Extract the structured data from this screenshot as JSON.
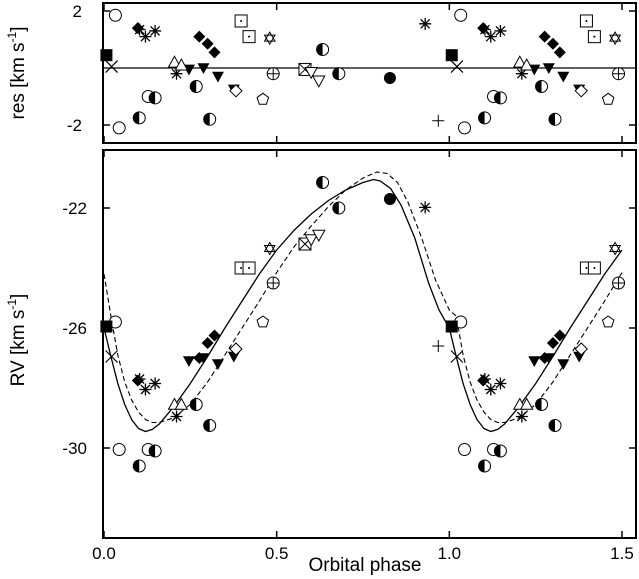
{
  "chart_data": [
    {
      "panel": "residuals",
      "type": "scatter",
      "ylabel": "res [km s",
      "ylabel_sup": "-1",
      "ylabel_close": "]",
      "xlim": [
        0.0,
        1.5
      ],
      "ylim": [
        -2.4,
        2.1
      ],
      "y_ticks": [
        2,
        -2
      ],
      "y_tick_labels": [
        "2",
        "-2"
      ],
      "x_ticks": [
        0.0,
        0.5,
        1.0,
        1.5
      ],
      "zero_line": 0,
      "points": [
        {
          "marker": "open-circle",
          "x": 0.033,
          "y": 1.85
        },
        {
          "marker": "open-circle",
          "x": 1.033,
          "y": 1.85
        },
        {
          "marker": "open-circle",
          "x": 0.044,
          "y": -2.1
        },
        {
          "marker": "open-circle",
          "x": 1.044,
          "y": -2.1
        },
        {
          "marker": "open-circle",
          "x": 0.128,
          "y": -1.0
        },
        {
          "marker": "open-circle",
          "x": 1.128,
          "y": -1.0
        },
        {
          "marker": "filled-square",
          "x": 0.007,
          "y": 0.45
        },
        {
          "marker": "filled-square",
          "x": 1.007,
          "y": 0.45
        },
        {
          "marker": "x-cross",
          "x": 0.022,
          "y": 0.05
        },
        {
          "marker": "x-cross",
          "x": 1.022,
          "y": 0.05
        },
        {
          "marker": "half-circle",
          "x": 0.102,
          "y": -1.75
        },
        {
          "marker": "half-circle",
          "x": 1.102,
          "y": -1.75
        },
        {
          "marker": "half-circle",
          "x": 0.148,
          "y": -1.05
        },
        {
          "marker": "half-circle",
          "x": 1.148,
          "y": -1.05
        },
        {
          "marker": "half-circle",
          "x": 0.267,
          "y": -0.65
        },
        {
          "marker": "half-circle",
          "x": 1.267,
          "y": -0.65
        },
        {
          "marker": "half-circle",
          "x": 0.306,
          "y": -1.8
        },
        {
          "marker": "half-circle",
          "x": 1.306,
          "y": -1.8
        },
        {
          "marker": "half-circle",
          "x": 0.633,
          "y": 0.65
        },
        {
          "marker": "half-circle",
          "x": 0.68,
          "y": -0.2
        },
        {
          "marker": "filled-circle",
          "x": 0.828,
          "y": -0.35
        },
        {
          "marker": "filled-diamond",
          "x": 0.098,
          "y": 1.4
        },
        {
          "marker": "filled-diamond",
          "x": 1.098,
          "y": 1.4
        },
        {
          "marker": "filled-diamond",
          "x": 0.276,
          "y": 1.1
        },
        {
          "marker": "filled-diamond",
          "x": 1.276,
          "y": 1.1
        },
        {
          "marker": "filled-diamond",
          "x": 0.3,
          "y": 0.85
        },
        {
          "marker": "filled-diamond",
          "x": 1.3,
          "y": 0.85
        },
        {
          "marker": "filled-diamond",
          "x": 0.32,
          "y": 0.55
        },
        {
          "marker": "filled-diamond",
          "x": 1.32,
          "y": 0.55
        },
        {
          "marker": "filled-tri-down",
          "x": 0.246,
          "y": -0.05
        },
        {
          "marker": "filled-tri-down",
          "x": 1.246,
          "y": -0.05
        },
        {
          "marker": "filled-tri-down",
          "x": 0.288,
          "y": 0.0
        },
        {
          "marker": "filled-tri-down",
          "x": 1.288,
          "y": 0.0
        },
        {
          "marker": "filled-tri-down",
          "x": 0.33,
          "y": -0.3
        },
        {
          "marker": "filled-tri-down",
          "x": 1.33,
          "y": -0.3
        },
        {
          "marker": "filled-tri-down",
          "x": 0.376,
          "y": -0.75
        },
        {
          "marker": "filled-tri-down",
          "x": 1.376,
          "y": -0.75
        },
        {
          "marker": "asterisk",
          "x": 0.103,
          "y": 1.35
        },
        {
          "marker": "asterisk",
          "x": 1.103,
          "y": 1.35
        },
        {
          "marker": "asterisk",
          "x": 0.12,
          "y": 1.1
        },
        {
          "marker": "asterisk",
          "x": 1.12,
          "y": 1.1
        },
        {
          "marker": "asterisk",
          "x": 0.148,
          "y": 1.3
        },
        {
          "marker": "asterisk",
          "x": 1.148,
          "y": 1.3
        },
        {
          "marker": "asterisk",
          "x": 0.21,
          "y": -0.2
        },
        {
          "marker": "asterisk",
          "x": 1.21,
          "y": -0.2
        },
        {
          "marker": "asterisk",
          "x": 0.93,
          "y": 1.55
        },
        {
          "marker": "open-tri-up",
          "x": 0.204,
          "y": 0.2
        },
        {
          "marker": "open-tri-up",
          "x": 1.204,
          "y": 0.2
        },
        {
          "marker": "open-tri-up",
          "x": 0.224,
          "y": 0.1
        },
        {
          "marker": "open-tri-up",
          "x": 1.224,
          "y": 0.1
        },
        {
          "marker": "open-diamond",
          "x": 0.382,
          "y": -0.8
        },
        {
          "marker": "open-diamond",
          "x": 1.382,
          "y": -0.8
        },
        {
          "marker": "dotted-square",
          "x": 0.397,
          "y": 1.65
        },
        {
          "marker": "dotted-square",
          "x": 1.397,
          "y": 1.65
        },
        {
          "marker": "dotted-square",
          "x": 0.42,
          "y": 1.1
        },
        {
          "marker": "dotted-square",
          "x": 1.42,
          "y": 1.1
        },
        {
          "marker": "star-of-david",
          "x": 0.48,
          "y": 1.05
        },
        {
          "marker": "star-of-david",
          "x": 1.48,
          "y": 1.05
        },
        {
          "marker": "circle-plus",
          "x": 0.49,
          "y": -0.2
        },
        {
          "marker": "circle-plus",
          "x": 1.49,
          "y": -0.2
        },
        {
          "marker": "crossed-square",
          "x": 0.582,
          "y": -0.05
        },
        {
          "marker": "open-tri-down",
          "x": 0.6,
          "y": -0.15
        },
        {
          "marker": "open-tri-down",
          "x": 0.622,
          "y": -0.45
        },
        {
          "marker": "open-pentagon",
          "x": 0.46,
          "y": -1.1
        },
        {
          "marker": "open-pentagon",
          "x": 1.46,
          "y": -1.1
        },
        {
          "marker": "plus",
          "x": 0.968,
          "y": -1.85
        }
      ]
    },
    {
      "panel": "rv",
      "type": "scatter",
      "xlabel": "Orbital phase",
      "ylabel": "RV [km s",
      "ylabel_sup": "-1",
      "ylabel_close": "]",
      "xlim": [
        -0.01,
        1.5
      ],
      "ylim": [
        -31.8,
        -19.9
      ],
      "x_ticks": [
        0.0,
        0.5,
        1.0,
        1.5
      ],
      "x_tick_labels": [
        "0.0",
        "0.5",
        "1.0",
        "1.5"
      ],
      "y_ticks": [
        -22,
        -26,
        -30
      ],
      "y_tick_labels": [
        "-22",
        "-26",
        "-30"
      ],
      "model_solid": [
        [
          0.0,
          -26.0
        ],
        [
          0.02,
          -26.95
        ],
        [
          0.04,
          -27.85
        ],
        [
          0.06,
          -28.55
        ],
        [
          0.08,
          -29.05
        ],
        [
          0.1,
          -29.35
        ],
        [
          0.12,
          -29.45
        ],
        [
          0.14,
          -29.38
        ],
        [
          0.16,
          -29.2
        ],
        [
          0.2,
          -28.65
        ],
        [
          0.25,
          -27.85
        ],
        [
          0.3,
          -26.95
        ],
        [
          0.35,
          -26.0
        ],
        [
          0.4,
          -25.1
        ],
        [
          0.45,
          -24.2
        ],
        [
          0.5,
          -23.4
        ],
        [
          0.55,
          -22.75
        ],
        [
          0.6,
          -22.2
        ],
        [
          0.65,
          -21.75
        ],
        [
          0.7,
          -21.4
        ],
        [
          0.75,
          -21.15
        ],
        [
          0.78,
          -21.05
        ],
        [
          0.8,
          -21.1
        ],
        [
          0.83,
          -21.35
        ],
        [
          0.86,
          -21.9
        ],
        [
          0.9,
          -23.0
        ],
        [
          0.94,
          -24.5
        ],
        [
          0.97,
          -25.4
        ],
        [
          1.0,
          -26.0
        ],
        [
          1.02,
          -26.95
        ],
        [
          1.04,
          -27.85
        ],
        [
          1.06,
          -28.55
        ],
        [
          1.08,
          -29.05
        ],
        [
          1.1,
          -29.35
        ],
        [
          1.12,
          -29.45
        ],
        [
          1.14,
          -29.38
        ],
        [
          1.16,
          -29.2
        ],
        [
          1.2,
          -28.65
        ],
        [
          1.25,
          -27.85
        ],
        [
          1.3,
          -26.95
        ],
        [
          1.35,
          -26.0
        ],
        [
          1.4,
          -25.1
        ],
        [
          1.45,
          -24.2
        ],
        [
          1.5,
          -23.4
        ]
      ],
      "model_dashed": [
        [
          0.0,
          -24.2
        ],
        [
          0.02,
          -25.6
        ],
        [
          0.04,
          -26.9
        ],
        [
          0.06,
          -27.8
        ],
        [
          0.08,
          -28.4
        ],
        [
          0.1,
          -28.8
        ],
        [
          0.12,
          -29.05
        ],
        [
          0.14,
          -29.15
        ],
        [
          0.16,
          -29.15
        ],
        [
          0.2,
          -29.0
        ],
        [
          0.25,
          -28.55
        ],
        [
          0.3,
          -27.8
        ],
        [
          0.35,
          -26.9
        ],
        [
          0.4,
          -26.0
        ],
        [
          0.45,
          -25.1
        ],
        [
          0.5,
          -24.15
        ],
        [
          0.55,
          -23.3
        ],
        [
          0.6,
          -22.6
        ],
        [
          0.65,
          -21.95
        ],
        [
          0.7,
          -21.4
        ],
        [
          0.75,
          -21.0
        ],
        [
          0.79,
          -20.8
        ],
        [
          0.82,
          -20.85
        ],
        [
          0.85,
          -21.15
        ],
        [
          0.88,
          -21.8
        ],
        [
          0.92,
          -23.0
        ],
        [
          0.96,
          -24.4
        ],
        [
          1.0,
          -25.4
        ],
        [
          1.02,
          -25.6
        ],
        [
          1.04,
          -26.9
        ],
        [
          1.06,
          -27.8
        ],
        [
          1.08,
          -28.4
        ],
        [
          1.1,
          -28.8
        ],
        [
          1.12,
          -29.05
        ],
        [
          1.14,
          -29.15
        ],
        [
          1.16,
          -29.15
        ],
        [
          1.2,
          -29.0
        ],
        [
          1.25,
          -28.55
        ],
        [
          1.3,
          -27.8
        ],
        [
          1.35,
          -26.9
        ],
        [
          1.4,
          -26.0
        ],
        [
          1.45,
          -25.1
        ],
        [
          1.5,
          -24.15
        ]
      ],
      "points": [
        {
          "marker": "open-circle",
          "x": 0.033,
          "y": -25.8
        },
        {
          "marker": "open-circle",
          "x": 1.033,
          "y": -25.8
        },
        {
          "marker": "open-circle",
          "x": 0.044,
          "y": -30.05
        },
        {
          "marker": "open-circle",
          "x": 1.044,
          "y": -30.05
        },
        {
          "marker": "open-circle",
          "x": 0.128,
          "y": -30.05
        },
        {
          "marker": "open-circle",
          "x": 1.128,
          "y": -30.05
        },
        {
          "marker": "filled-square",
          "x": 0.007,
          "y": -25.95
        },
        {
          "marker": "filled-square",
          "x": 1.007,
          "y": -25.95
        },
        {
          "marker": "x-cross",
          "x": 0.022,
          "y": -26.95
        },
        {
          "marker": "x-cross",
          "x": 1.022,
          "y": -26.95
        },
        {
          "marker": "half-circle",
          "x": 0.102,
          "y": -30.6
        },
        {
          "marker": "half-circle",
          "x": 1.102,
          "y": -30.6
        },
        {
          "marker": "half-circle",
          "x": 0.148,
          "y": -30.1
        },
        {
          "marker": "half-circle",
          "x": 1.148,
          "y": -30.1
        },
        {
          "marker": "half-circle",
          "x": 0.267,
          "y": -28.55
        },
        {
          "marker": "half-circle",
          "x": 1.267,
          "y": -28.55
        },
        {
          "marker": "half-circle",
          "x": 0.306,
          "y": -29.25
        },
        {
          "marker": "half-circle",
          "x": 1.306,
          "y": -29.25
        },
        {
          "marker": "half-circle",
          "x": 0.633,
          "y": -21.15
        },
        {
          "marker": "half-circle",
          "x": 0.68,
          "y": -22.0
        },
        {
          "marker": "filled-circle",
          "x": 0.828,
          "y": -21.7
        },
        {
          "marker": "filled-diamond",
          "x": 0.098,
          "y": -27.75
        },
        {
          "marker": "filled-diamond",
          "x": 1.098,
          "y": -27.75
        },
        {
          "marker": "filled-diamond",
          "x": 0.276,
          "y": -27.0
        },
        {
          "marker": "filled-diamond",
          "x": 1.276,
          "y": -27.0
        },
        {
          "marker": "filled-diamond",
          "x": 0.3,
          "y": -26.5
        },
        {
          "marker": "filled-diamond",
          "x": 1.3,
          "y": -26.5
        },
        {
          "marker": "filled-diamond",
          "x": 0.32,
          "y": -26.25
        },
        {
          "marker": "filled-diamond",
          "x": 1.32,
          "y": -26.25
        },
        {
          "marker": "filled-tri-down",
          "x": 0.246,
          "y": -27.1
        },
        {
          "marker": "filled-tri-down",
          "x": 1.246,
          "y": -27.1
        },
        {
          "marker": "filled-tri-down",
          "x": 0.288,
          "y": -27.0
        },
        {
          "marker": "filled-tri-down",
          "x": 1.288,
          "y": -27.0
        },
        {
          "marker": "filled-tri-down",
          "x": 0.33,
          "y": -27.2
        },
        {
          "marker": "filled-tri-down",
          "x": 1.33,
          "y": -27.2
        },
        {
          "marker": "filled-tri-down",
          "x": 0.376,
          "y": -26.95
        },
        {
          "marker": "filled-tri-down",
          "x": 1.376,
          "y": -26.95
        },
        {
          "marker": "asterisk",
          "x": 0.103,
          "y": -27.7
        },
        {
          "marker": "asterisk",
          "x": 1.103,
          "y": -27.7
        },
        {
          "marker": "asterisk",
          "x": 0.12,
          "y": -28.05
        },
        {
          "marker": "asterisk",
          "x": 1.12,
          "y": -28.05
        },
        {
          "marker": "asterisk",
          "x": 0.148,
          "y": -27.85
        },
        {
          "marker": "asterisk",
          "x": 1.148,
          "y": -27.85
        },
        {
          "marker": "asterisk",
          "x": 0.21,
          "y": -28.95
        },
        {
          "marker": "asterisk",
          "x": 1.21,
          "y": -28.95
        },
        {
          "marker": "asterisk",
          "x": 0.93,
          "y": -21.98
        },
        {
          "marker": "open-tri-up",
          "x": 0.204,
          "y": -28.55
        },
        {
          "marker": "open-tri-up",
          "x": 1.204,
          "y": -28.55
        },
        {
          "marker": "open-tri-up",
          "x": 0.224,
          "y": -28.55
        },
        {
          "marker": "open-tri-up",
          "x": 1.224,
          "y": -28.55
        },
        {
          "marker": "open-diamond",
          "x": 0.382,
          "y": -26.7
        },
        {
          "marker": "open-diamond",
          "x": 1.382,
          "y": -26.7
        },
        {
          "marker": "dotted-square",
          "x": 0.397,
          "y": -24.0
        },
        {
          "marker": "dotted-square",
          "x": 1.397,
          "y": -24.0
        },
        {
          "marker": "dotted-square",
          "x": 0.42,
          "y": -24.0
        },
        {
          "marker": "dotted-square",
          "x": 1.42,
          "y": -24.0
        },
        {
          "marker": "star-of-david",
          "x": 0.48,
          "y": -23.35
        },
        {
          "marker": "star-of-david",
          "x": 1.48,
          "y": -23.35
        },
        {
          "marker": "circle-plus",
          "x": 0.49,
          "y": -24.5
        },
        {
          "marker": "circle-plus",
          "x": 1.49,
          "y": -24.5
        },
        {
          "marker": "crossed-square",
          "x": 0.582,
          "y": -23.2
        },
        {
          "marker": "open-tri-down",
          "x": 0.6,
          "y": -23.05
        },
        {
          "marker": "open-tri-down",
          "x": 0.622,
          "y": -22.9
        },
        {
          "marker": "open-pentagon",
          "x": 0.46,
          "y": -25.8
        },
        {
          "marker": "open-pentagon",
          "x": 1.46,
          "y": -25.8
        },
        {
          "marker": "plus",
          "x": 0.968,
          "y": -26.6
        }
      ]
    }
  ]
}
